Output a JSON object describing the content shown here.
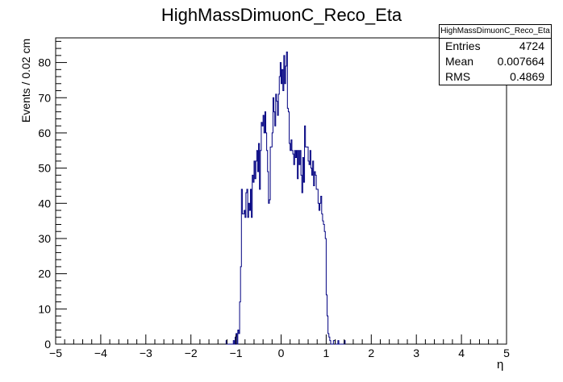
{
  "chart_data": {
    "type": "bar",
    "title": "HighMassDimuonC_Reco_Eta",
    "xlabel": "η",
    "ylabel": "Events / 0.02 cm",
    "xlim": [
      -5,
      5
    ],
    "ylim": [
      0,
      87
    ],
    "bin_width": 0.02,
    "x_ticks": [
      "−5",
      "−4",
      "−3",
      "−2",
      "−1",
      "0",
      "1",
      "2",
      "3",
      "4",
      "5"
    ],
    "y_ticks": [
      "0",
      "10",
      "20",
      "30",
      "40",
      "50",
      "60",
      "70",
      "80"
    ],
    "bin_start": -1.22,
    "values": [
      1,
      0,
      0,
      0,
      0,
      0,
      0,
      0,
      1,
      0,
      2,
      3,
      0,
      4,
      3,
      12,
      22,
      44,
      37,
      37,
      38,
      36,
      43,
      44,
      36,
      40,
      38,
      44,
      36,
      48,
      46,
      52,
      47,
      52,
      55,
      49,
      57,
      44,
      55,
      63,
      62,
      65,
      60,
      66,
      60,
      55,
      49,
      40,
      41,
      56,
      56,
      60,
      70,
      66,
      62,
      71,
      69,
      65,
      71,
      76,
      80,
      74,
      78,
      72,
      82,
      74,
      79,
      83,
      67,
      66,
      57,
      55,
      58,
      55,
      54,
      51,
      55,
      53,
      55,
      47,
      55,
      51,
      55,
      48,
      43,
      53,
      46,
      62,
      56,
      56,
      56,
      52,
      51,
      55,
      50,
      48,
      52,
      45,
      49,
      48,
      44,
      44,
      40,
      38,
      40,
      42,
      37,
      35,
      34,
      32,
      30,
      14,
      8,
      3,
      2,
      1,
      0,
      0,
      0,
      1,
      1,
      0,
      0,
      0,
      1,
      0,
      0,
      0,
      0,
      0,
      0,
      1
    ]
  },
  "stats": {
    "title": "HighMassDimuonC_Reco_Eta",
    "rows": [
      {
        "label": "Entries",
        "value": "4724"
      },
      {
        "label": "Mean",
        "value": "0.007664"
      },
      {
        "label": "RMS",
        "value": "0.4869"
      }
    ]
  },
  "colors": {
    "histogram": "#000080",
    "axis": "#000000"
  }
}
